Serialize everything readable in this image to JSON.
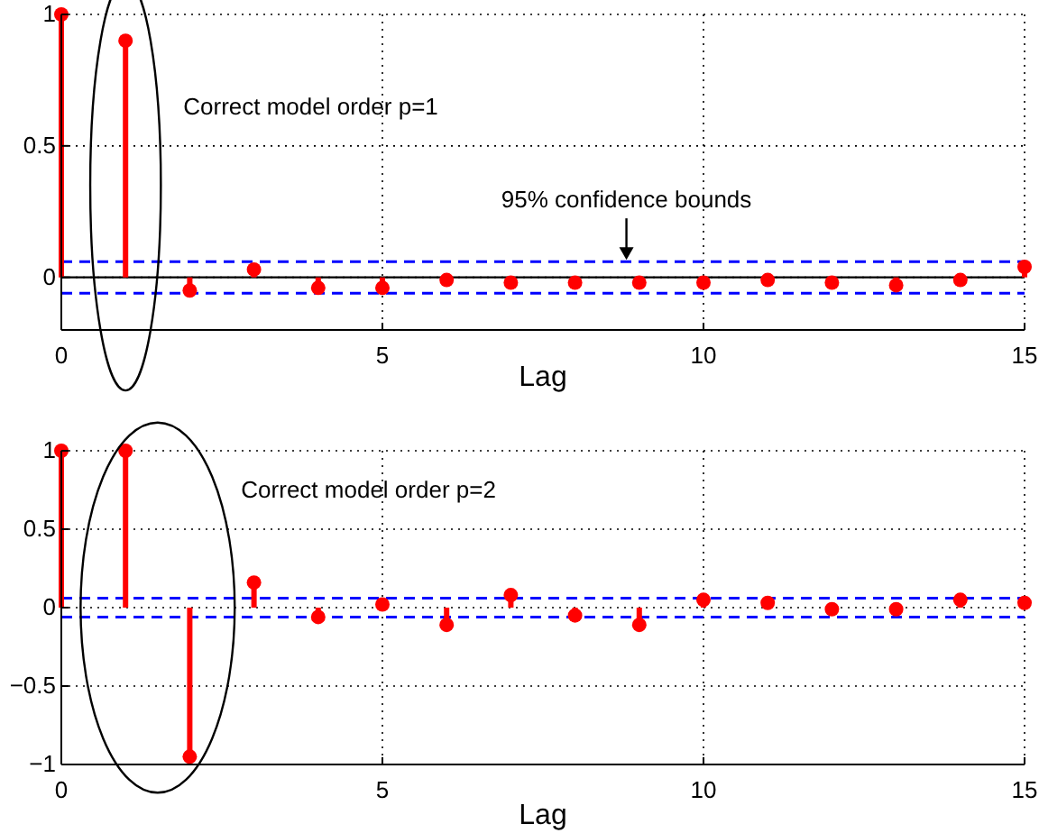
{
  "chart_data": [
    {
      "type": "lollipop",
      "xlabel": "Lag",
      "x": [
        0,
        1,
        2,
        3,
        4,
        5,
        6,
        7,
        8,
        9,
        10,
        11,
        12,
        13,
        14,
        15
      ],
      "values": [
        1,
        0.9,
        -0.05,
        0.03,
        -0.04,
        -0.04,
        -0.01,
        -0.02,
        -0.02,
        -0.02,
        -0.02,
        -0.01,
        -0.02,
        -0.03,
        -0.01,
        0.04
      ],
      "color": "#ff0000",
      "marker": "circle",
      "xlim": [
        0,
        15
      ],
      "xticks": [
        0,
        5,
        10,
        15
      ],
      "ylim": [
        -0.2,
        1
      ],
      "yticks": [
        0,
        0.5,
        1
      ],
      "grid": true,
      "ref_lines": [
        {
          "axis": "y",
          "value": 0,
          "color": "#000000",
          "line_style": "solid"
        },
        {
          "axis": "y",
          "value": 0.06,
          "color": "#0000ff",
          "line_style": "dashed"
        },
        {
          "axis": "y",
          "value": -0.06,
          "color": "#0000ff",
          "line_style": "dashed"
        }
      ],
      "annotations": [
        "Correct model order p=1",
        {
          "text": "95% confidence bounds",
          "x": 8.8,
          "y": 0.06
        }
      ]
    },
    {
      "type": "lollipop",
      "xlabel": "Lag",
      "x": [
        0,
        1,
        2,
        3,
        4,
        5,
        6,
        7,
        8,
        9,
        10,
        11,
        12,
        13,
        14,
        15
      ],
      "values": [
        1,
        1,
        -0.95,
        0.16,
        -0.06,
        0.02,
        -0.11,
        0.08,
        -0.05,
        -0.11,
        0.05,
        0.03,
        -0.01,
        -0.01,
        0.05,
        0.03
      ],
      "color": "#ff0000",
      "marker": "circle",
      "xlim": [
        0,
        15
      ],
      "xticks": [
        0,
        5,
        10,
        15
      ],
      "ylim": [
        -1,
        1
      ],
      "yticks": [
        -1,
        -0.5,
        0,
        0.5,
        1
      ],
      "grid": true,
      "ref_lines": [
        {
          "axis": "y",
          "value": 0.06,
          "color": "#0000ff",
          "line_style": "dashed"
        },
        {
          "axis": "y",
          "value": -0.06,
          "color": "#0000ff",
          "line_style": "dashed"
        }
      ],
      "annotations": [
        "Correct model order p=2"
      ]
    }
  ]
}
